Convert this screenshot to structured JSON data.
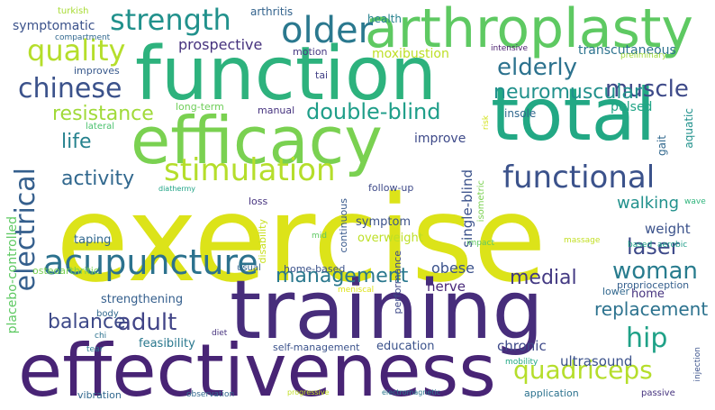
{
  "words": [
    {
      "text": "exercise",
      "color": "#dce319"
    },
    {
      "text": "training",
      "color": "#472d7b"
    },
    {
      "text": "effectiveness",
      "color": "#482475"
    },
    {
      "text": "function",
      "color": "#2db27d"
    },
    {
      "text": "total",
      "color": "#22a884"
    },
    {
      "text": "efficacy",
      "color": "#7ad151"
    },
    {
      "text": "arthroplasty",
      "color": "#5ec962"
    },
    {
      "text": "functional",
      "color": "#3b528b"
    },
    {
      "text": "acupuncture",
      "color": "#2c728e"
    },
    {
      "text": "stimulation",
      "color": "#b5de2b"
    },
    {
      "text": "strength",
      "color": "#21918c"
    },
    {
      "text": "older",
      "color": "#2a788e"
    },
    {
      "text": "quality",
      "color": "#b5de2b"
    },
    {
      "text": "chinese",
      "color": "#3b528b"
    },
    {
      "text": "muscle",
      "color": "#3e4a89"
    },
    {
      "text": "elderly",
      "color": "#2c728e"
    },
    {
      "text": "neuromuscular",
      "color": "#21918c"
    },
    {
      "text": "double-blind",
      "color": "#1f9e89"
    },
    {
      "text": "resistance",
      "color": "#a0da39"
    },
    {
      "text": "life",
      "color": "#26828e"
    },
    {
      "text": "activity",
      "color": "#31688e"
    },
    {
      "text": "electrical",
      "color": "#355f8d"
    },
    {
      "text": "adult",
      "color": "#414487"
    },
    {
      "text": "woman",
      "color": "#287c8e"
    },
    {
      "text": "laser",
      "color": "#3e4a89"
    },
    {
      "text": "hip",
      "color": "#1fa187"
    },
    {
      "text": "quadriceps",
      "color": "#b5de2b"
    },
    {
      "text": "management",
      "color": "#2a788e"
    },
    {
      "text": "medial",
      "color": "#443a83"
    },
    {
      "text": "balance",
      "color": "#3e4a89"
    },
    {
      "text": "replacement",
      "color": "#2c728e"
    },
    {
      "text": "walking",
      "color": "#21918c"
    },
    {
      "text": "prospective",
      "color": "#46327e"
    },
    {
      "text": "symptomatic",
      "color": "#3b528b"
    },
    {
      "text": "moxibustion",
      "color": "#bddf26"
    },
    {
      "text": "transcutaneous",
      "color": "#2c728e"
    },
    {
      "text": "pulsed",
      "color": "#20a486"
    },
    {
      "text": "improve",
      "color": "#3e4a89"
    },
    {
      "text": "insole",
      "color": "#31688e"
    },
    {
      "text": "arthritis",
      "color": "#33638d"
    },
    {
      "text": "health",
      "color": "#26828e"
    },
    {
      "text": "turkish",
      "color": "#a8db34"
    },
    {
      "text": "compartment",
      "color": "#31688e"
    },
    {
      "text": "motion",
      "color": "#453781"
    },
    {
      "text": "tai",
      "color": "#424086"
    },
    {
      "text": "intensive",
      "color": "#481b6d"
    },
    {
      "text": "preliminary",
      "color": "#9fda3a"
    },
    {
      "text": "improves",
      "color": "#38598c"
    },
    {
      "text": "long-term",
      "color": "#6ece58"
    },
    {
      "text": "manual",
      "color": "#46337f"
    },
    {
      "text": "lateral",
      "color": "#4ac16d"
    },
    {
      "text": "risk",
      "color": "#d2e21b"
    },
    {
      "text": "placebo-controlled",
      "color": "#5ec962"
    },
    {
      "text": "diathermy",
      "color": "#20a486"
    },
    {
      "text": "follow-up",
      "color": "#3e4a89"
    },
    {
      "text": "single-blind",
      "color": "#3b528b"
    },
    {
      "text": "isometric",
      "color": "#7ad151"
    },
    {
      "text": "gait",
      "color": "#31688e"
    },
    {
      "text": "aquatic",
      "color": "#21918c"
    },
    {
      "text": "loss",
      "color": "#46337f"
    },
    {
      "text": "continuous",
      "color": "#38598c"
    },
    {
      "text": "symptom",
      "color": "#3b528b"
    },
    {
      "text": "weight",
      "color": "#3b528b"
    },
    {
      "text": "overweight",
      "color": "#bddf26"
    },
    {
      "text": "wave",
      "color": "#2fb47c"
    },
    {
      "text": "taping",
      "color": "#31688e"
    },
    {
      "text": "disability",
      "color": "#c8e020"
    },
    {
      "text": "impact",
      "color": "#5ec962"
    },
    {
      "text": "based",
      "color": "#20a486"
    },
    {
      "text": "aerobic",
      "color": "#1f9e89"
    },
    {
      "text": "massage",
      "color": "#c2df23"
    },
    {
      "text": "mid",
      "color": "#5ec962"
    },
    {
      "text": "osteoarthritic",
      "color": "#7ad151"
    },
    {
      "text": "usual",
      "color": "#33638d"
    },
    {
      "text": "home-based",
      "color": "#3b528b"
    },
    {
      "text": "obese",
      "color": "#3b528b"
    },
    {
      "text": "nerve",
      "color": "#482878"
    },
    {
      "text": "proprioception",
      "color": "#355f8d"
    },
    {
      "text": "lower",
      "color": "#31688e"
    },
    {
      "text": "home",
      "color": "#46337f"
    },
    {
      "text": "strengthening",
      "color": "#355f8d"
    },
    {
      "text": "meniscal",
      "color": "#dde318"
    },
    {
      "text": "performance",
      "color": "#3e4a89"
    },
    {
      "text": "body",
      "color": "#31688e"
    },
    {
      "text": "feasibility",
      "color": "#2a788e"
    },
    {
      "text": "chi",
      "color": "#2c728e"
    },
    {
      "text": "diet",
      "color": "#46327e"
    },
    {
      "text": "self-management",
      "color": "#3b528b"
    },
    {
      "text": "education",
      "color": "#3b528b"
    },
    {
      "text": "chronic",
      "color": "#3e4a89"
    },
    {
      "text": "tear",
      "color": "#2a788e"
    },
    {
      "text": "mobility",
      "color": "#22a884"
    },
    {
      "text": "ultrasound",
      "color": "#3b528b"
    },
    {
      "text": "vibration",
      "color": "#31688e"
    },
    {
      "text": "observation",
      "color": "#31688e"
    },
    {
      "text": "progressive",
      "color": "#c2df23"
    },
    {
      "text": "electromagnetic",
      "color": "#2a788e"
    },
    {
      "text": "application",
      "color": "#2c728e"
    },
    {
      "text": "passive",
      "color": "#46337f"
    },
    {
      "text": "injection",
      "color": "#3b528b"
    }
  ]
}
